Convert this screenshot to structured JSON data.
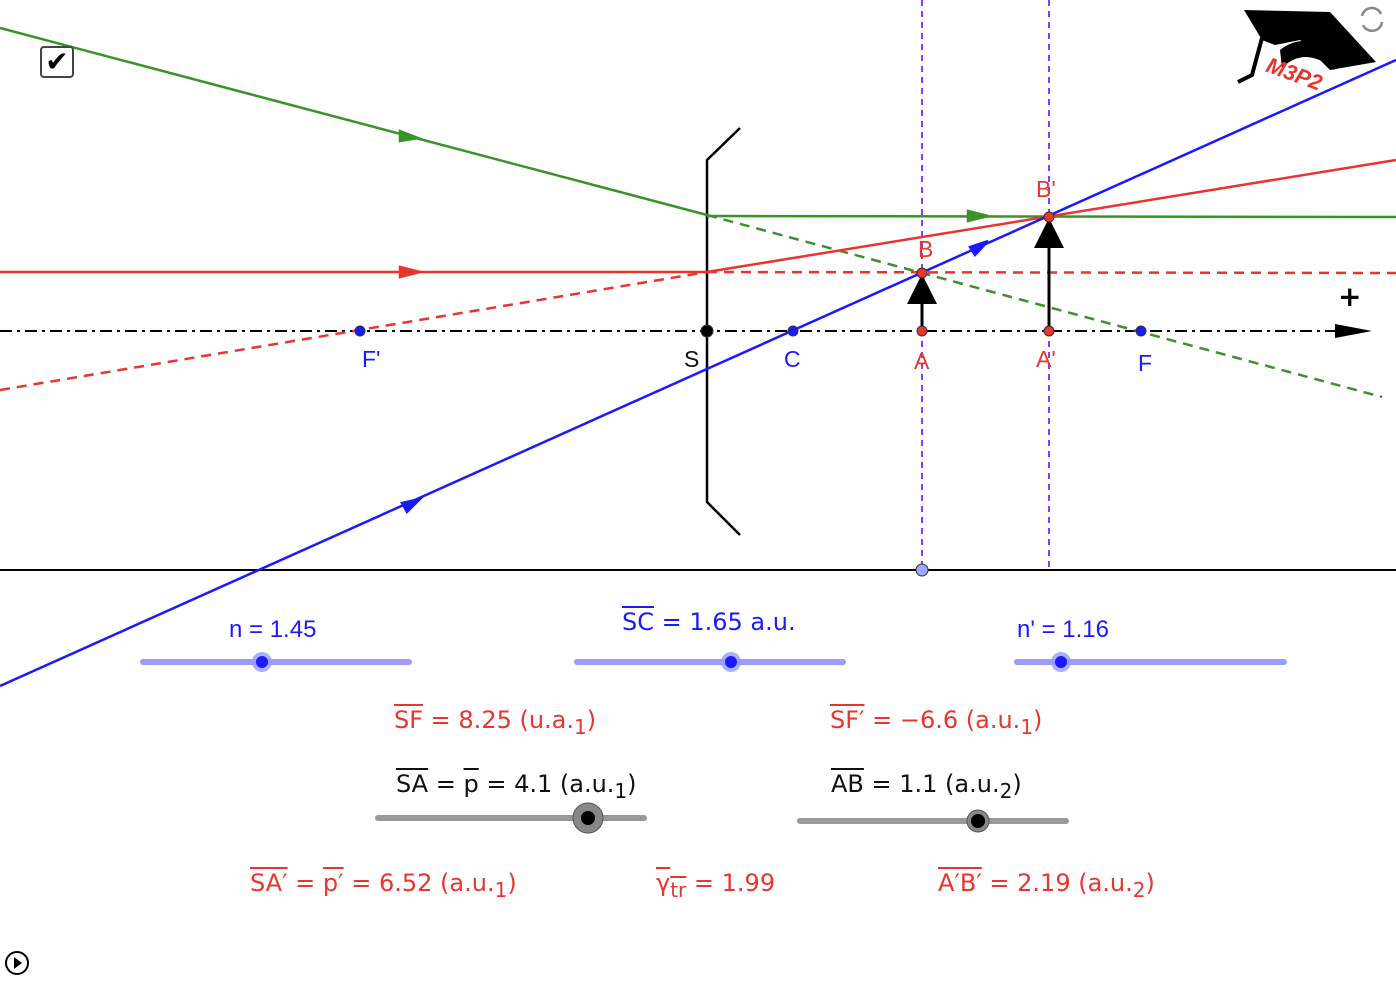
{
  "logo": {
    "text": "M3P2"
  },
  "icons": {
    "refresh": "refresh-icon",
    "checkbox": "checkbox-checked",
    "play": "play-icon"
  },
  "points": {
    "Fp": "F'",
    "S": "S",
    "C": "C",
    "A": "A",
    "Ap": "A'",
    "F": "F",
    "B": "B",
    "Bp": "B'"
  },
  "axis": {
    "plus": "+"
  },
  "sliders": {
    "n": {
      "label": "n = 1.45",
      "value": 1.45,
      "position": 0.45
    },
    "sc": {
      "label": "SC",
      "text": " = 1.65 a.u.",
      "value": 1.65,
      "position": 0.58
    },
    "np": {
      "label": "n' = 1.16",
      "value": 1.16,
      "position": 0.16
    },
    "sa": {
      "label": "SA",
      "eq": " = ",
      "p": "p",
      "text": " = 4.1 (a.u.",
      "sub": "1",
      ")": ")",
      "value": 4.1,
      "position": 0.79
    },
    "ab": {
      "label": "AB",
      "text": " =  1.1 (a.u.",
      "sub": "2",
      "value": 1.1,
      "position": 0.67
    }
  },
  "results": {
    "sf": {
      "label": "SF",
      "text": " = 8.25 (u.a.",
      "sub": "1"
    },
    "sfp": {
      "label": "SF′",
      "text": " = −6.6 (a.u.",
      "sub": "1"
    },
    "sap": {
      "label": "SA′",
      "eq": " = ",
      "p": "p′",
      "text": " = 6.52 (a.u.",
      "sub": "1"
    },
    "gamma": {
      "label": "γ",
      "sub": "tr",
      "text": " = 1.99"
    },
    "apbp": {
      "label": "A′B′",
      "text": " = 2.19 (a.u.",
      "sub": "2"
    }
  },
  "colors": {
    "blue": "#1a1aff",
    "red": "#e8352d",
    "green": "#3a922a",
    "purple": "#8a3cf0",
    "slider": "#9a9cf5"
  }
}
